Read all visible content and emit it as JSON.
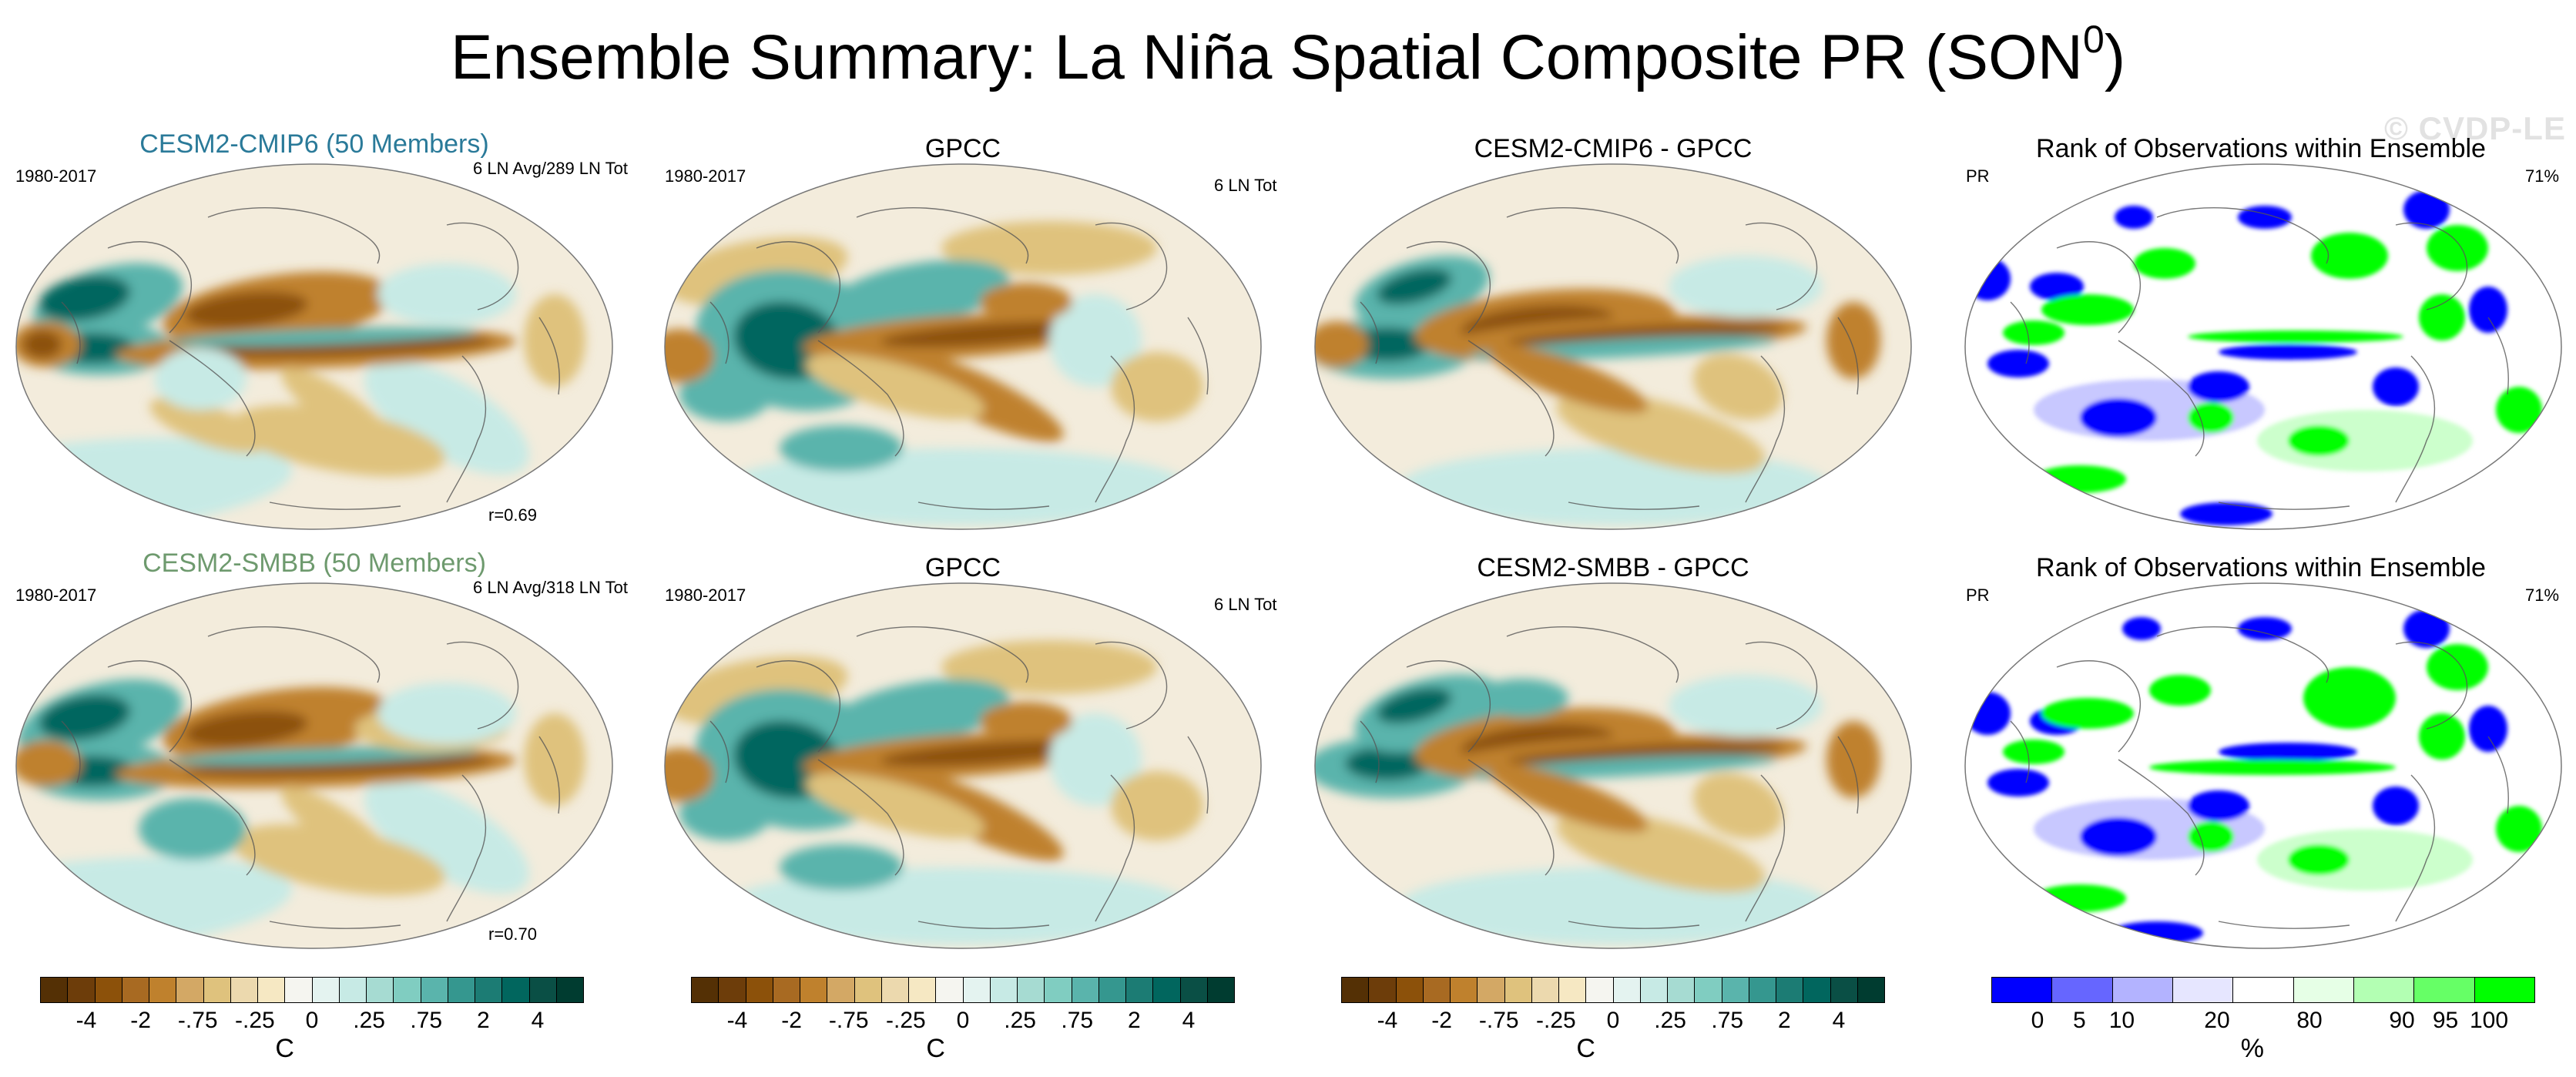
{
  "title": {
    "main": "Ensemble Summary: La Niña Spatial Composite PR (SON",
    "sup": "0",
    "close": ")"
  },
  "watermark": "© CVDP-LE",
  "rows": [
    {
      "model": {
        "title": "CESM2-CMIP6 (50 Members)",
        "color": "#2a7a99",
        "period": "1980-2017",
        "count": "6 LN Avg/289 LN Tot",
        "corr": "r=0.69"
      },
      "obs": {
        "title": "GPCC",
        "period": "1980-2017",
        "count": "6 LN Tot"
      },
      "diff": {
        "title": "CESM2-CMIP6 - GPCC"
      },
      "rank": {
        "title": "Rank of Observations within Ensemble",
        "var": "PR",
        "pct": "71%"
      }
    },
    {
      "model": {
        "title": "CESM2-SMBB (50 Members)",
        "color": "#6e9a6e",
        "period": "1980-2017",
        "count": "6 LN Avg/318 LN Tot",
        "corr": "r=0.70"
      },
      "obs": {
        "title": "GPCC",
        "period": "1980-2017",
        "count": "6 LN Tot"
      },
      "diff": {
        "title": "CESM2-SMBB - GPCC"
      },
      "rank": {
        "title": "Rank of Observations within Ensemble",
        "var": "PR",
        "pct": "71%"
      }
    }
  ],
  "colorbars": {
    "precip": {
      "colors": [
        "#543005",
        "#6d3d0a",
        "#8c510a",
        "#a86a22",
        "#bf812d",
        "#d3a865",
        "#dfc27d",
        "#ecd9ae",
        "#f6e8c3",
        "#f5f5f0",
        "#e4f3f0",
        "#c7eae5",
        "#a6dbd2",
        "#80cdc1",
        "#5ab4ac",
        "#35978f",
        "#1c7c74",
        "#01665e",
        "#0a4f45",
        "#003c30"
      ],
      "labels": [
        "-4",
        "-2",
        "-.75",
        "-.25",
        "0",
        ".25",
        ".75",
        "2",
        "4"
      ],
      "unit": "C"
    },
    "rank": {
      "colors": [
        "#0000ff",
        "#6666ff",
        "#b3b3ff",
        "#e6e6ff",
        "#ffffff",
        "#e6ffe6",
        "#b3ffb3",
        "#66ff66",
        "#00ff00"
      ],
      "labels": [
        "0",
        "5",
        "10",
        "20",
        "80",
        "90",
        "95",
        "100"
      ],
      "unit": "%"
    }
  },
  "map_colors": {
    "brown_dark": "#8c510a",
    "brown_mid": "#bf812d",
    "tan": "#dfc27d",
    "cream": "#f3ecdc",
    "teal_light": "#c7eae5",
    "teal_mid": "#5ab4ac",
    "teal_dark": "#01665e",
    "rank_blue": "#0000ff",
    "rank_lightblue": "#c8c8ff",
    "rank_green": "#00ff00",
    "rank_lightgreen": "#ccffcc"
  }
}
